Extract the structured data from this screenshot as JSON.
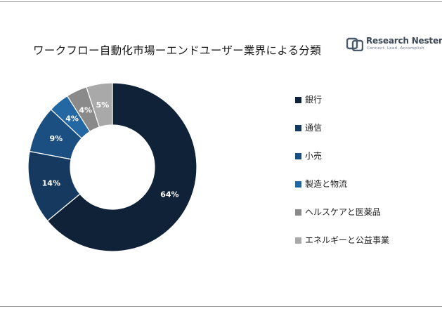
{
  "title": "ワークフロー自動化市場ーエンドユーザー業界による分類",
  "logo": {
    "name": "Research Nester",
    "tagline": "Connect. Lead. Accomplish",
    "colors": {
      "mark": "#4b5a6b",
      "text": "#3c4856"
    }
  },
  "chart_data": {
    "type": "pie",
    "style": "donut",
    "title": "ワークフロー自動化市場ーエンドユーザー業界による分類",
    "legend_position": "right",
    "slices": [
      {
        "label": "銀行",
        "value": 64,
        "display": "64%",
        "color": "#0f2238"
      },
      {
        "label": "通信",
        "value": 14,
        "display": "14%",
        "color": "#163a5f"
      },
      {
        "label": "小売",
        "value": 9,
        "display": "9%",
        "color": "#1b4f82"
      },
      {
        "label": "製造と物流",
        "value": 4,
        "display": "4%",
        "color": "#2367a3"
      },
      {
        "label": "ヘルスケアと医薬品",
        "value": 4,
        "display": "4%",
        "color": "#8a8a8a"
      },
      {
        "label": "エネルギーと公益事業",
        "value": 5,
        "display": "5%",
        "color": "#a9a9a9"
      }
    ]
  }
}
